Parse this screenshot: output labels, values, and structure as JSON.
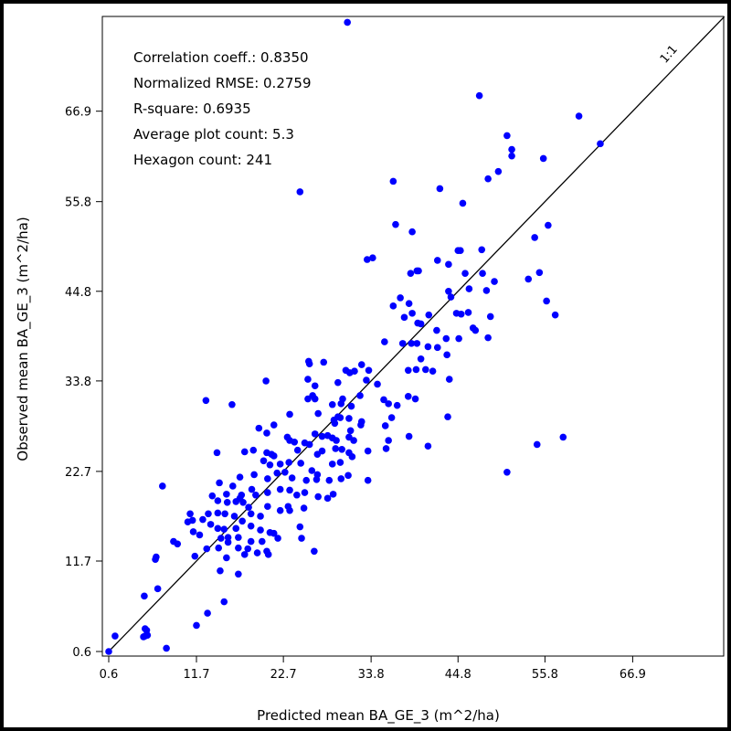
{
  "chart_data": {
    "type": "scatter",
    "xlabel": "Predicted mean BA_GE_3 (m^2/ha)",
    "ylabel": "Observed mean BA_GE_3 (m^2/ha)",
    "xlim": [
      0.0,
      78.5
    ],
    "ylim": [
      0.0,
      78.5
    ],
    "xticks": [
      "0.6",
      "11.7",
      "22.7",
      "33.8",
      "44.8",
      "55.8",
      "66.9"
    ],
    "yticks": [
      "0.6",
      "11.7",
      "22.7",
      "33.8",
      "44.8",
      "55.8",
      "66.9"
    ],
    "tick_values": [
      0.6,
      11.7,
      22.7,
      33.8,
      44.8,
      55.8,
      66.9
    ],
    "grid": false,
    "reference_line": {
      "label": "1:1",
      "from": [
        0.6,
        0.6
      ],
      "to": [
        78.5,
        78.5
      ]
    },
    "annotations": [
      "Correlation coeff.: 0.8350",
      "Normalized RMSE: 0.2759",
      "R-square: 0.6935",
      "Average plot count: 5.3",
      "Hexagon count: 241"
    ],
    "point_color": "#0000ff",
    "points": [
      [
        30.8,
        77.8
      ],
      [
        47.5,
        68.8
      ],
      [
        60.1,
        66.3
      ],
      [
        62.8,
        62.9
      ],
      [
        51.0,
        63.9
      ],
      [
        51.6,
        62.2
      ],
      [
        51.6,
        61.4
      ],
      [
        55.6,
        61.1
      ],
      [
        49.9,
        59.5
      ],
      [
        48.6,
        58.6
      ],
      [
        24.8,
        57.0
      ],
      [
        36.6,
        58.3
      ],
      [
        42.5,
        57.4
      ],
      [
        45.4,
        55.6
      ],
      [
        36.9,
        53.0
      ],
      [
        39.0,
        52.1
      ],
      [
        56.2,
        52.9
      ],
      [
        54.5,
        51.4
      ],
      [
        47.8,
        49.9
      ],
      [
        44.8,
        49.8
      ],
      [
        45.1,
        49.8
      ],
      [
        33.3,
        48.7
      ],
      [
        34.0,
        48.9
      ],
      [
        43.6,
        48.1
      ],
      [
        42.2,
        48.6
      ],
      [
        39.6,
        47.3
      ],
      [
        39.8,
        47.3
      ],
      [
        38.8,
        47.0
      ],
      [
        45.7,
        47.0
      ],
      [
        47.9,
        47.0
      ],
      [
        49.4,
        46.0
      ],
      [
        55.1,
        47.1
      ],
      [
        53.7,
        46.3
      ],
      [
        48.4,
        44.9
      ],
      [
        46.2,
        45.1
      ],
      [
        43.6,
        44.8
      ],
      [
        43.9,
        44.1
      ],
      [
        37.5,
        44.0
      ],
      [
        38.6,
        43.3
      ],
      [
        39.0,
        42.1
      ],
      [
        56.0,
        43.6
      ],
      [
        36.6,
        43.0
      ],
      [
        38.0,
        41.6
      ],
      [
        39.7,
        40.9
      ],
      [
        40.1,
        40.8
      ],
      [
        41.1,
        41.9
      ],
      [
        42.1,
        40.0
      ],
      [
        44.6,
        42.1
      ],
      [
        45.2,
        42.0
      ],
      [
        46.1,
        42.2
      ],
      [
        46.7,
        40.3
      ],
      [
        48.9,
        41.7
      ],
      [
        57.1,
        41.9
      ],
      [
        43.3,
        39.0
      ],
      [
        44.9,
        39.0
      ],
      [
        47.0,
        40.0
      ],
      [
        48.6,
        39.1
      ],
      [
        35.5,
        38.6
      ],
      [
        37.8,
        38.4
      ],
      [
        38.9,
        38.4
      ],
      [
        39.6,
        38.4
      ],
      [
        41.0,
        38.0
      ],
      [
        42.2,
        37.9
      ],
      [
        40.1,
        36.5
      ],
      [
        43.4,
        37.0
      ],
      [
        25.9,
        36.2
      ],
      [
        26.0,
        35.9
      ],
      [
        27.8,
        36.1
      ],
      [
        32.6,
        35.8
      ],
      [
        30.6,
        35.1
      ],
      [
        31.7,
        35.0
      ],
      [
        33.5,
        35.1
      ],
      [
        38.5,
        35.1
      ],
      [
        39.5,
        35.2
      ],
      [
        40.7,
        35.2
      ],
      [
        41.6,
        35.0
      ],
      [
        43.7,
        34.0
      ],
      [
        20.5,
        33.8
      ],
      [
        25.8,
        34.0
      ],
      [
        26.7,
        33.2
      ],
      [
        31.1,
        34.8
      ],
      [
        29.6,
        33.6
      ],
      [
        30.2,
        31.6
      ],
      [
        33.2,
        33.9
      ],
      [
        34.6,
        33.4
      ],
      [
        12.9,
        31.4
      ],
      [
        16.2,
        30.9
      ],
      [
        25.8,
        31.6
      ],
      [
        26.4,
        32.0
      ],
      [
        26.7,
        31.6
      ],
      [
        28.9,
        30.9
      ],
      [
        29.1,
        29.0
      ],
      [
        32.4,
        32.0
      ],
      [
        30.0,
        31.0
      ],
      [
        31.3,
        30.7
      ],
      [
        29.6,
        29.4
      ],
      [
        31.0,
        29.2
      ],
      [
        32.6,
        28.8
      ],
      [
        35.6,
        28.3
      ],
      [
        36.4,
        29.3
      ],
      [
        38.5,
        31.9
      ],
      [
        39.4,
        31.6
      ],
      [
        35.4,
        31.5
      ],
      [
        36.0,
        31.0
      ],
      [
        37.1,
        30.8
      ],
      [
        23.5,
        29.7
      ],
      [
        19.6,
        28.0
      ],
      [
        21.5,
        28.4
      ],
      [
        27.1,
        29.8
      ],
      [
        29.9,
        29.3
      ],
      [
        29.2,
        28.6
      ],
      [
        32.5,
        28.4
      ],
      [
        43.5,
        29.4
      ],
      [
        20.6,
        27.4
      ],
      [
        23.2,
        26.9
      ],
      [
        23.5,
        26.5
      ],
      [
        24.1,
        26.3
      ],
      [
        25.4,
        26.2
      ],
      [
        26.7,
        27.3
      ],
      [
        27.6,
        27.0
      ],
      [
        28.3,
        27.1
      ],
      [
        28.9,
        26.8
      ],
      [
        29.4,
        26.5
      ],
      [
        31.2,
        27.7
      ],
      [
        31.0,
        26.9
      ],
      [
        31.6,
        26.5
      ],
      [
        36.0,
        26.5
      ],
      [
        38.6,
        27.0
      ],
      [
        26.0,
        26.0
      ],
      [
        17.8,
        25.1
      ],
      [
        18.9,
        25.3
      ],
      [
        20.6,
        25.0
      ],
      [
        21.2,
        24.8
      ],
      [
        21.5,
        24.6
      ],
      [
        24.5,
        25.3
      ],
      [
        27.0,
        24.8
      ],
      [
        27.6,
        25.2
      ],
      [
        29.3,
        25.5
      ],
      [
        30.1,
        25.4
      ],
      [
        31.0,
        25.0
      ],
      [
        33.4,
        25.2
      ],
      [
        35.7,
        25.5
      ],
      [
        41.0,
        25.8
      ],
      [
        54.8,
        26.0
      ],
      [
        58.1,
        26.9
      ],
      [
        14.3,
        25.0
      ],
      [
        20.2,
        24.0
      ],
      [
        21.0,
        23.5
      ],
      [
        22.3,
        23.6
      ],
      [
        23.4,
        23.8
      ],
      [
        24.9,
        23.7
      ],
      [
        26.3,
        22.8
      ],
      [
        27.0,
        22.3
      ],
      [
        28.9,
        23.6
      ],
      [
        29.9,
        23.8
      ],
      [
        31.4,
        24.5
      ],
      [
        19.0,
        22.3
      ],
      [
        17.2,
        22.0
      ],
      [
        20.7,
        21.8
      ],
      [
        21.9,
        22.5
      ],
      [
        22.9,
        22.6
      ],
      [
        23.8,
        21.9
      ],
      [
        25.6,
        21.6
      ],
      [
        26.9,
        21.7
      ],
      [
        28.5,
        21.6
      ],
      [
        30.0,
        21.8
      ],
      [
        30.9,
        22.2
      ],
      [
        33.4,
        21.6
      ],
      [
        51.0,
        22.6
      ],
      [
        14.6,
        21.3
      ],
      [
        16.3,
        20.9
      ],
      [
        15.5,
        19.9
      ],
      [
        17.4,
        19.8
      ],
      [
        18.7,
        20.5
      ],
      [
        19.2,
        19.8
      ],
      [
        20.7,
        20.1
      ],
      [
        22.3,
        20.5
      ],
      [
        23.5,
        20.4
      ],
      [
        24.4,
        19.8
      ],
      [
        25.4,
        20.1
      ],
      [
        27.1,
        19.6
      ],
      [
        28.3,
        19.4
      ],
      [
        29.0,
        19.9
      ],
      [
        7.4,
        20.9
      ],
      [
        13.7,
        19.7
      ],
      [
        14.4,
        19.1
      ],
      [
        15.6,
        18.9
      ],
      [
        16.7,
        19.0
      ],
      [
        17.2,
        19.4
      ],
      [
        17.6,
        18.9
      ],
      [
        18.3,
        18.3
      ],
      [
        20.7,
        18.4
      ],
      [
        22.3,
        17.9
      ],
      [
        23.3,
        18.4
      ],
      [
        23.5,
        17.9
      ],
      [
        25.3,
        18.2
      ],
      [
        10.9,
        17.5
      ],
      [
        11.2,
        16.7
      ],
      [
        13.2,
        17.5
      ],
      [
        14.4,
        17.6
      ],
      [
        15.3,
        17.5
      ],
      [
        16.5,
        17.2
      ],
      [
        18.6,
        17.5
      ],
      [
        19.8,
        17.2
      ],
      [
        10.6,
        16.5
      ],
      [
        12.5,
        16.8
      ],
      [
        13.5,
        16.2
      ],
      [
        14.4,
        15.7
      ],
      [
        15.2,
        15.6
      ],
      [
        16.7,
        15.7
      ],
      [
        17.5,
        16.6
      ],
      [
        18.6,
        16.0
      ],
      [
        19.8,
        15.5
      ],
      [
        21.0,
        15.2
      ],
      [
        24.8,
        15.9
      ],
      [
        11.3,
        15.3
      ],
      [
        12.1,
        14.9
      ],
      [
        14.8,
        14.5
      ],
      [
        15.7,
        14.6
      ],
      [
        17.0,
        14.6
      ],
      [
        18.6,
        14.1
      ],
      [
        20.0,
        14.1
      ],
      [
        21.5,
        15.1
      ],
      [
        22.0,
        14.5
      ],
      [
        25.0,
        14.5
      ],
      [
        13.0,
        13.2
      ],
      [
        14.5,
        13.3
      ],
      [
        15.7,
        14.0
      ],
      [
        17.0,
        13.3
      ],
      [
        18.2,
        13.2
      ],
      [
        19.4,
        12.7
      ],
      [
        20.6,
        12.9
      ],
      [
        8.8,
        14.1
      ],
      [
        9.3,
        13.8
      ],
      [
        11.5,
        12.3
      ],
      [
        15.5,
        12.1
      ],
      [
        17.8,
        12.5
      ],
      [
        20.8,
        12.5
      ],
      [
        6.5,
        11.9
      ],
      [
        6.6,
        12.2
      ],
      [
        26.6,
        12.9
      ],
      [
        14.7,
        10.5
      ],
      [
        17.0,
        10.1
      ],
      [
        6.8,
        8.3
      ],
      [
        5.1,
        7.4
      ],
      [
        15.2,
        6.7
      ],
      [
        13.1,
        5.3
      ],
      [
        11.7,
        3.8
      ],
      [
        5.2,
        3.4
      ],
      [
        5.4,
        3.2
      ],
      [
        5.2,
        2.5
      ],
      [
        5.5,
        2.6
      ],
      [
        5.0,
        2.4
      ],
      [
        1.4,
        2.5
      ],
      [
        7.9,
        1.0
      ],
      [
        0.6,
        0.6
      ]
    ]
  }
}
